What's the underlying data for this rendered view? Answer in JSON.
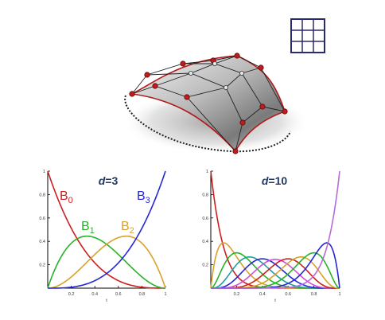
{
  "colors": {
    "red": "#cc1f1f",
    "green": "#27b327",
    "orange": "#d9a12a",
    "blue": "#2626d9",
    "navy": "#1f3a6a",
    "grid_icon": "#2a2a6e",
    "control_net": "#222222",
    "surface_edge": "#b01a1a"
  },
  "grid_icon": {
    "name": "grid-icon",
    "rows": 3,
    "cols": 3
  },
  "chart_data": [
    {
      "type": "line",
      "title": "d=3",
      "title_parts": {
        "var": "d",
        "eq": "=3"
      },
      "degree": 3,
      "xlim": [
        0,
        1
      ],
      "ylim": [
        0,
        1
      ],
      "x_ticks": [
        "0.2",
        "0.4",
        "0.6",
        "0.8",
        "1"
      ],
      "y_ticks": [
        "0.2",
        "0.4",
        "0.6",
        "0.8",
        "1"
      ],
      "xlabel": "t",
      "series": [
        {
          "name": "B0",
          "label_main": "B",
          "label_sub": "0",
          "color": "#cc1f1f"
        },
        {
          "name": "B1",
          "label_main": "B",
          "label_sub": "1",
          "color": "#27b327"
        },
        {
          "name": "B2",
          "label_main": "B",
          "label_sub": "2",
          "color": "#d9a12a"
        },
        {
          "name": "B3",
          "label_main": "B",
          "label_sub": "3",
          "color": "#2626d9"
        }
      ]
    },
    {
      "type": "line",
      "title": "d=10",
      "title_parts": {
        "var": "d",
        "eq": "=10"
      },
      "degree": 10,
      "xlim": [
        0,
        1
      ],
      "ylim": [
        0,
        1
      ],
      "x_ticks": [
        "0.2",
        "0.4",
        "0.6",
        "0.8",
        "1"
      ],
      "y_ticks": [
        "0.2",
        "0.4",
        "0.6",
        "0.8",
        "1"
      ],
      "xlabel": "t",
      "series_colors": [
        "#cc1f1f",
        "#d9a12a",
        "#27b327",
        "#1f9f9f",
        "#2626d9",
        "#d04fd0",
        "#cc1f1f",
        "#d9a12a",
        "#27b327",
        "#2626d9",
        "#b86bd8"
      ]
    }
  ]
}
